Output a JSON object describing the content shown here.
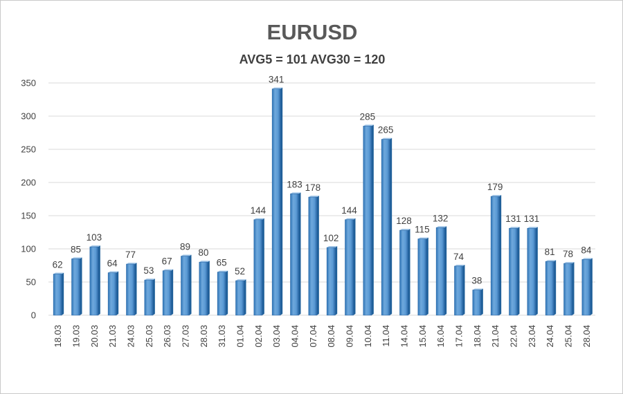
{
  "chart_data": {
    "type": "bar",
    "title": "EURUSD",
    "subtitle": "AVG5 = 101 AVG30 = 120",
    "xlabel": "",
    "ylabel": "",
    "ylim": [
      0,
      350
    ],
    "yticks": [
      0,
      50,
      100,
      150,
      200,
      250,
      300,
      350
    ],
    "grid": true,
    "categories": [
      "18.03",
      "19.03",
      "20.03",
      "21.03",
      "24.03",
      "25.03",
      "26.03",
      "27.03",
      "28.03",
      "31.03",
      "01.04",
      "02.04",
      "03.04",
      "04.04",
      "07.04",
      "08.04",
      "09.04",
      "10.04",
      "11.04",
      "14.04",
      "15.04",
      "16.04",
      "17.04",
      "18.04",
      "21.04",
      "22.04",
      "23.04",
      "24.04",
      "25.04",
      "28.04"
    ],
    "values": [
      62,
      85,
      103,
      64,
      77,
      53,
      67,
      89,
      80,
      65,
      52,
      144,
      341,
      183,
      178,
      102,
      144,
      285,
      265,
      128,
      115,
      132,
      74,
      38,
      179,
      131,
      131,
      81,
      78,
      84
    ],
    "colors": {
      "bar": "#5b9bd5",
      "bar_dark": "#2e75b6",
      "bar_light": "#9dc3e6",
      "grid": "#d9d9d9",
      "text": "#404040"
    }
  }
}
